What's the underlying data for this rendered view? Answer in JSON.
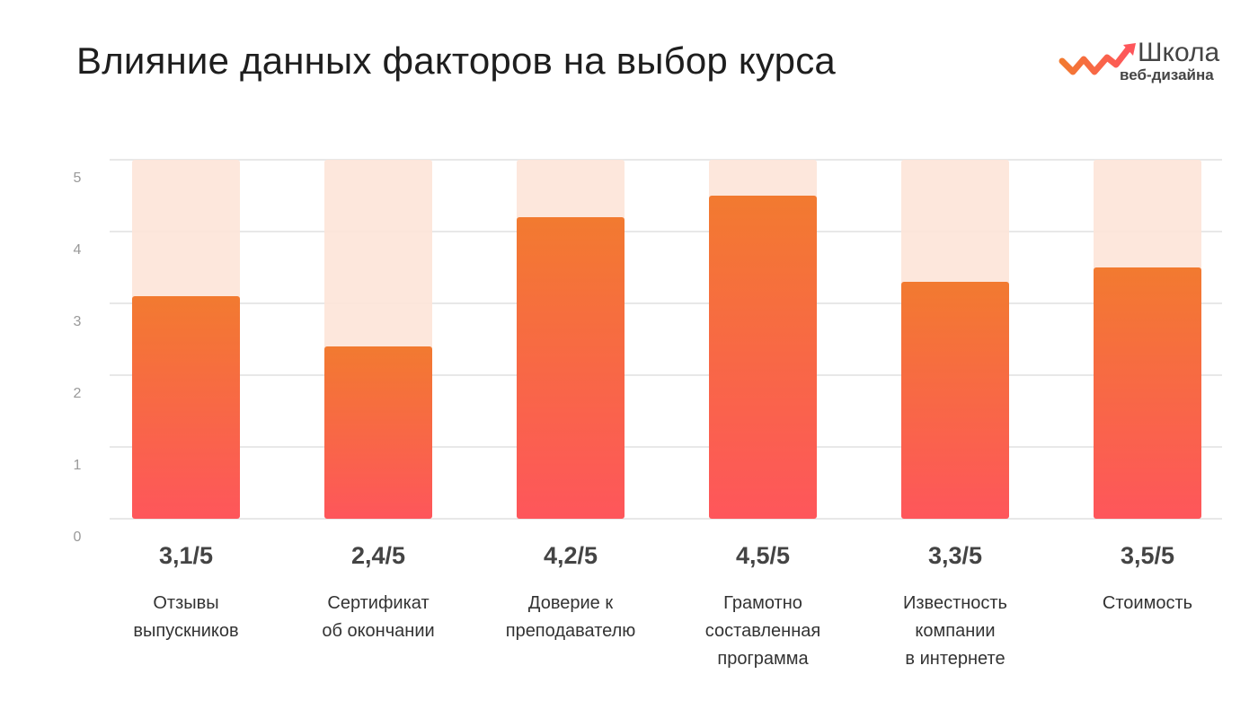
{
  "logo": {
    "line1": "Школа",
    "line2": "веб-дизайна"
  },
  "colors": {
    "bar_top": "#f27a30",
    "bar_bottom": "#fe565b",
    "bar_background": "#fde4d8",
    "grid": "#e8e8e8",
    "tick_text": "#999999"
  },
  "chart_data": {
    "type": "bar",
    "title": "Влияние данных факторов на выбор курса",
    "categories": [
      "Отзывы\nвыпускников",
      "Сертификат\nоб окончании",
      "Доверие к\nпреподавателю",
      "Грамотно\nсоставленная\nпрограмма",
      "Известность\nкомпании\nв интернете",
      "Стоимость"
    ],
    "values": [
      3.1,
      2.4,
      4.2,
      4.5,
      3.3,
      3.5
    ],
    "value_labels": [
      "3,1/5",
      "2,4/5",
      "4,2/5",
      "4,5/5",
      "3,3/5",
      "3,5/5"
    ],
    "ylim": [
      0,
      5
    ],
    "yticks": [
      "0",
      "1",
      "2",
      "3",
      "4",
      "5"
    ],
    "grid": true,
    "background_bars_max": 5
  }
}
